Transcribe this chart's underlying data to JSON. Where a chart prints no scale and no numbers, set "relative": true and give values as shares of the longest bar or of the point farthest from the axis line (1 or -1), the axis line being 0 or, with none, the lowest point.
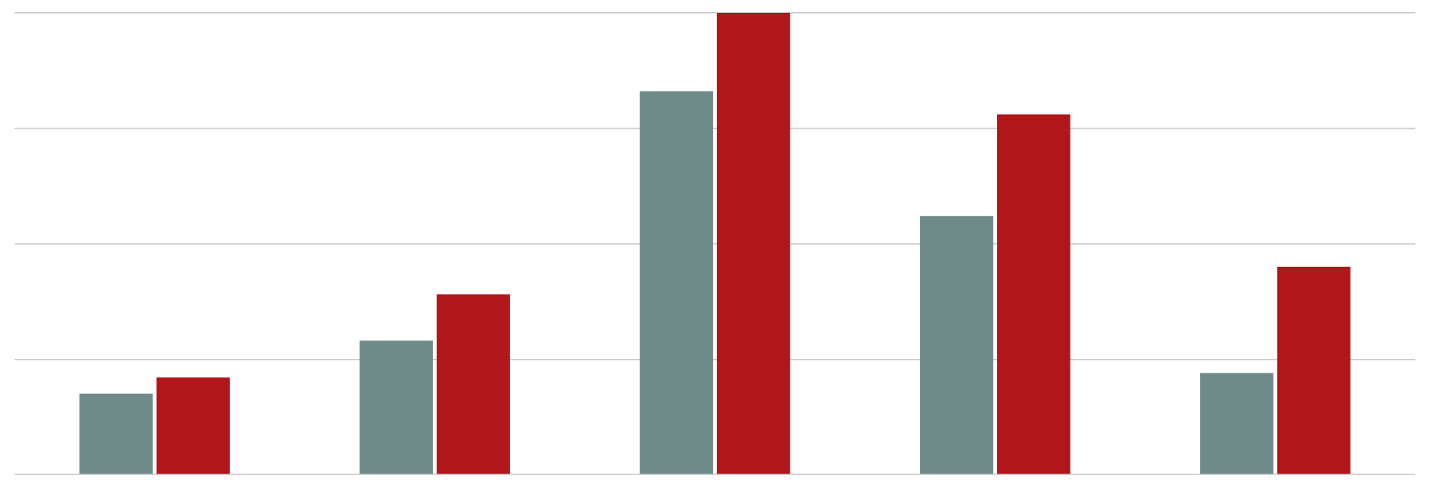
{
  "chart_data": {
    "type": "bar",
    "relative": true,
    "grid": "y",
    "categories": [
      null,
      null,
      null,
      null,
      null
    ],
    "series": [
      {
        "color": "#6e8b89",
        "values": [
          0.175,
          0.29,
          0.83,
          0.56,
          0.22
        ]
      },
      {
        "color": "#b0161a",
        "values": [
          0.21,
          0.39,
          1.0,
          0.78,
          0.45
        ]
      }
    ]
  }
}
